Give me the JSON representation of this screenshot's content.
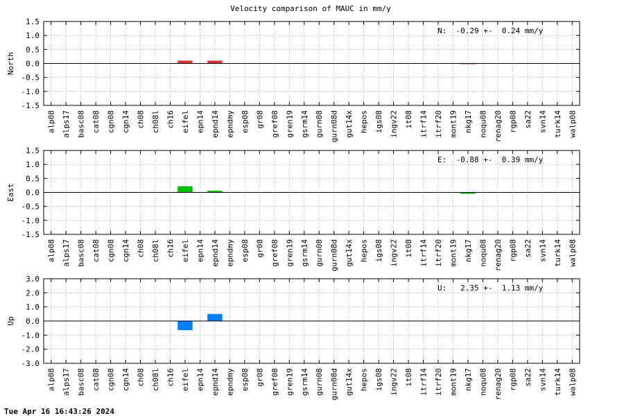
{
  "title": "Velocity comparison of MAUC in mm/y",
  "timestamp": "Tue Apr 16 16:43:26 2024",
  "chart_data": [
    {
      "type": "bar",
      "ylabel": "North",
      "annotation": "N:  -0.29 +-  0.24 mm/y",
      "color": "#e03030",
      "grid": true,
      "categories": [
        "alp08",
        "alps17",
        "basc08",
        "cat08",
        "cgn08",
        "cgn14",
        "ch08",
        "ch08l",
        "ch16",
        "eifel",
        "epn14",
        "epnd14",
        "epndmy",
        "esp08",
        "gr08",
        "gref08",
        "gren19",
        "gsrm14",
        "gurn08",
        "gurn08d",
        "gut14x",
        "hepos",
        "igs08",
        "ingv22",
        "it08",
        "itrf14",
        "itrf20",
        "mont19",
        "nkg17",
        "noqu08",
        "renag20",
        "rgp08",
        "sa22",
        "svn14",
        "turk14",
        "walp08"
      ],
      "values": [
        null,
        null,
        null,
        null,
        null,
        null,
        null,
        null,
        null,
        0.1,
        null,
        0.1,
        null,
        null,
        null,
        null,
        null,
        null,
        null,
        null,
        null,
        null,
        null,
        null,
        null,
        null,
        null,
        null,
        -0.02,
        null,
        null,
        null,
        null,
        null,
        null,
        null
      ],
      "ylim": [
        -1.5,
        1.5
      ],
      "yticks": [
        -1.5,
        {
          "value": -1,
          "label": "-1.0"
        },
        -0.5,
        {
          "value": 0,
          "label": "0.0"
        },
        0.5,
        {
          "value": 1,
          "label": "1.0"
        },
        1.5
      ]
    },
    {
      "type": "bar",
      "ylabel": "East",
      "annotation": "E:  -0.88 +-  0.39 mm/y",
      "color": "#00c000",
      "grid": true,
      "categories": [
        "alp08",
        "alps17",
        "basc08",
        "cat08",
        "cgn08",
        "cgn14",
        "ch08",
        "ch08l",
        "ch16",
        "eifel",
        "epn14",
        "epnd14",
        "epndmy",
        "esp08",
        "gr08",
        "gref08",
        "gren19",
        "gsrm14",
        "gurn08",
        "gurn08d",
        "gut14x",
        "hepos",
        "igs08",
        "ingv22",
        "it08",
        "itrf14",
        "itrf20",
        "mont19",
        "nkg17",
        "noqu08",
        "renag20",
        "rgp08",
        "sa22",
        "svn14",
        "turk14",
        "walp08"
      ],
      "values": [
        null,
        null,
        null,
        null,
        null,
        null,
        null,
        null,
        null,
        0.22,
        null,
        0.06,
        null,
        null,
        null,
        null,
        null,
        null,
        null,
        null,
        null,
        null,
        null,
        null,
        null,
        null,
        null,
        null,
        -0.05,
        null,
        null,
        null,
        null,
        null,
        null,
        null
      ],
      "ylim": [
        -1.5,
        1.5
      ],
      "yticks": [
        -1.5,
        {
          "value": -1,
          "label": "-1.0"
        },
        -0.5,
        {
          "value": 0,
          "label": "0.0"
        },
        0.5,
        {
          "value": 1,
          "label": "1.0"
        },
        1.5
      ]
    },
    {
      "type": "bar",
      "ylabel": "Up",
      "annotation": "U:   2.35 +-  1.13 mm/y",
      "color": "#0080ff",
      "grid": true,
      "categories": [
        "alp08",
        "alps17",
        "basc08",
        "cat08",
        "cgn08",
        "cgn14",
        "ch08",
        "ch08l",
        "ch16",
        "eifel",
        "epn14",
        "epnd14",
        "epndmy",
        "esp08",
        "gr08",
        "gref08",
        "gren19",
        "gsrm14",
        "gurn08",
        "gurn08d",
        "gut14x",
        "hepos",
        "igs08",
        "ingv22",
        "it08",
        "itrf14",
        "itrf20",
        "mont19",
        "nkg17",
        "noqu08",
        "renag20",
        "rgp08",
        "sa22",
        "svn14",
        "turk14",
        "walp08"
      ],
      "values": [
        null,
        null,
        null,
        null,
        null,
        null,
        null,
        null,
        null,
        -0.65,
        null,
        0.5,
        null,
        null,
        null,
        null,
        null,
        null,
        null,
        null,
        null,
        null,
        null,
        null,
        null,
        null,
        null,
        null,
        null,
        null,
        null,
        null,
        null,
        null,
        null,
        null
      ],
      "ylim": [
        -3,
        3
      ],
      "yticks": [
        {
          "value": -3,
          "label": "-3.0"
        },
        {
          "value": -2,
          "label": "-2.0"
        },
        {
          "value": -1,
          "label": "-1.0"
        },
        {
          "value": 0,
          "label": "0.0"
        },
        {
          "value": 1,
          "label": "1.0"
        },
        {
          "value": 2,
          "label": "2.0"
        },
        {
          "value": 3,
          "label": "3.0"
        }
      ]
    }
  ]
}
